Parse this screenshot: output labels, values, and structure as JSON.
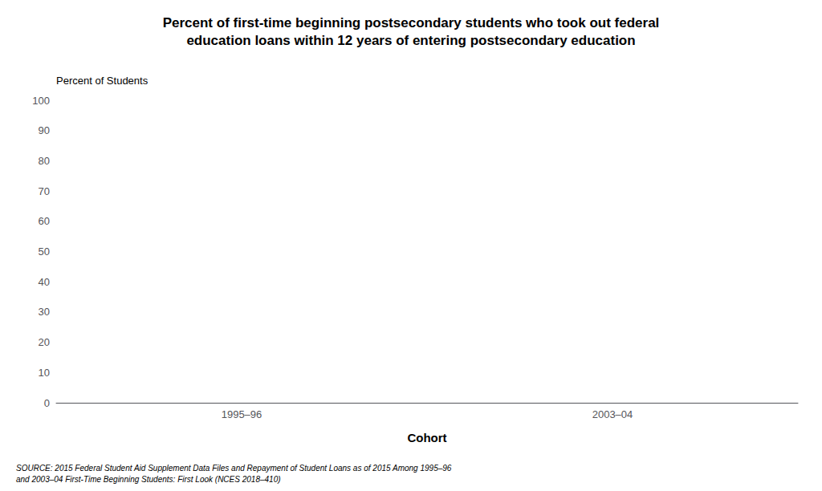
{
  "chart_data": {
    "type": "bar",
    "title": "Percent of first-time beginning postsecondary students who took out federal\neducation loans within 12 years of entering postsecondary education",
    "ylabel": "Percent of Students",
    "xlabel": "Cohort",
    "categories": [
      "1995–96",
      "2003–04"
    ],
    "values": [
      null,
      null
    ],
    "ylim": [
      0,
      100
    ],
    "yticks": [
      0,
      10,
      20,
      30,
      40,
      50,
      60,
      70,
      80,
      90,
      100
    ],
    "grid": false,
    "annotations": [
      "SOURCE: 2015 Federal Student Aid Supplement Data Files and Repayment of Student Loans as of 2015 Among 1995–96\nand 2003–04 First-Time Beginning Students: First Look (NCES 2018–410)"
    ]
  }
}
